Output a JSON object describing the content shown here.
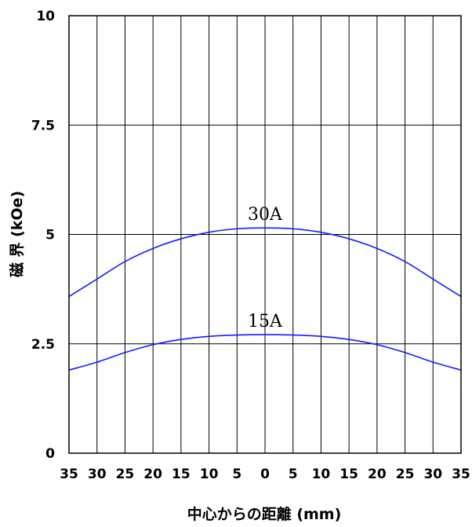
{
  "chart_data": {
    "type": "line",
    "title": "",
    "xlabel": "中心からの距離 (mm)",
    "ylabel": "磁 界 (kOe)",
    "x_tick_labels": [
      "35",
      "30",
      "25",
      "20",
      "15",
      "10",
      "5",
      "0",
      "5",
      "10",
      "15",
      "20",
      "25",
      "30",
      "35"
    ],
    "y_tick_labels": [
      "0",
      "2.5",
      "5",
      "7.5",
      "10"
    ],
    "y_ticks": [
      0,
      2.5,
      5,
      7.5,
      10
    ],
    "xlim": [
      -35,
      35
    ],
    "ylim": [
      0,
      10
    ],
    "grid": true,
    "line_color": "#1a1aff",
    "series": [
      {
        "name": "30A",
        "x": [
          -35,
          -30,
          -25,
          -20,
          -15,
          -10,
          -5,
          0,
          5,
          10,
          15,
          20,
          25,
          30,
          35
        ],
        "y": [
          3.58,
          3.98,
          4.38,
          4.68,
          4.9,
          5.05,
          5.13,
          5.15,
          5.13,
          5.05,
          4.9,
          4.68,
          4.38,
          3.98,
          3.58
        ]
      },
      {
        "name": "15A",
        "x": [
          -35,
          -30,
          -25,
          -20,
          -15,
          -10,
          -5,
          0,
          5,
          10,
          15,
          20,
          25,
          30,
          35
        ],
        "y": [
          1.9,
          2.08,
          2.3,
          2.48,
          2.6,
          2.67,
          2.7,
          2.71,
          2.7,
          2.67,
          2.6,
          2.48,
          2.3,
          2.08,
          1.9
        ]
      }
    ]
  }
}
